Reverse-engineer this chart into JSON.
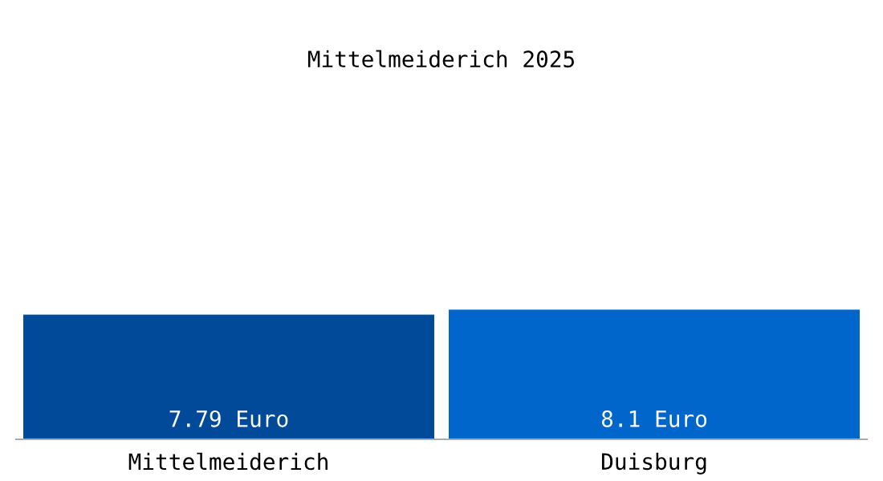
{
  "chart_data": {
    "type": "bar",
    "title": "Mittelmeiderich 2025",
    "categories": [
      "Mittelmeiderich",
      "Duisburg"
    ],
    "values": [
      7.79,
      8.1
    ],
    "colors": [
      "#004a99",
      "#0066cc"
    ],
    "value_labels": [
      "7.79 Euro",
      "8.1 Euro"
    ],
    "grid": false,
    "legend": false
  }
}
